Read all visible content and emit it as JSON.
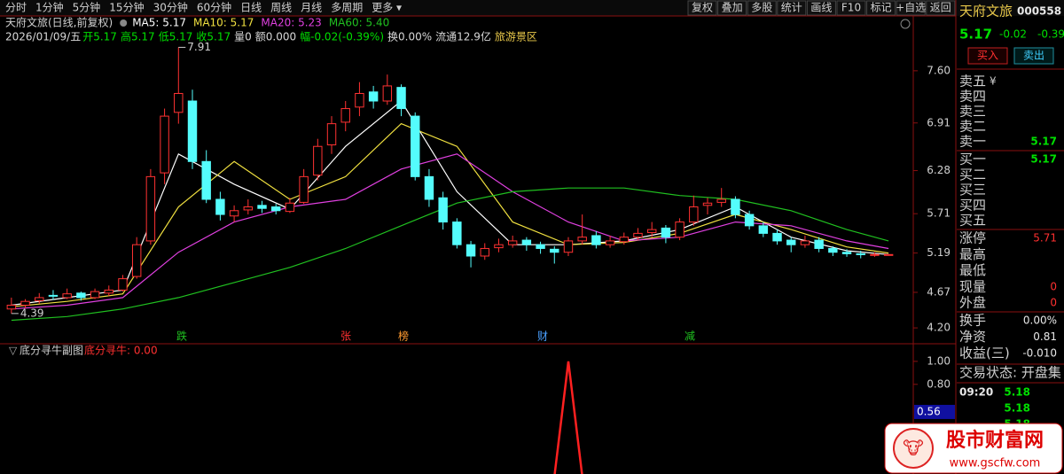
{
  "toolbar": {
    "periods": [
      "分时",
      "1分钟",
      "5分钟",
      "15分钟",
      "30分钟",
      "60分钟",
      "日线",
      "周线",
      "月线",
      "多周期",
      "更多 ▾"
    ],
    "tools": [
      "复权",
      "叠加",
      "多股",
      "统计",
      "画线",
      "F10",
      "标记",
      "+自选",
      "返回"
    ]
  },
  "info": {
    "title": "天府文旅(日线,前复权)",
    "details": [
      {
        "text": "2026/01/09/五",
        "color": "#d8d8d8"
      },
      {
        "text": "开5.17",
        "color": "#00e000"
      },
      {
        "text": "高5.17",
        "color": "#00e000"
      },
      {
        "text": "低5.17",
        "color": "#00e000"
      },
      {
        "text": "收5.17",
        "color": "#00e000"
      },
      {
        "text": "量0",
        "color": "#d8d8d8"
      },
      {
        "text": "额0.000",
        "color": "#d8d8d8"
      },
      {
        "text": "幅-0.02(-0.39%)",
        "color": "#00e000"
      },
      {
        "text": "换0.00%",
        "color": "#d8d8d8"
      },
      {
        "text": "流通12.9亿",
        "color": "#d8d8d8"
      },
      {
        "text": "旅游景区",
        "color": "#e8c84a"
      }
    ]
  },
  "events": [
    "跌",
    "张",
    "榜",
    "财",
    "减"
  ],
  "chart_data": [
    {
      "type": "candlestick",
      "ylim": [
        3.99,
        7.95
      ],
      "yticks": [
        {
          "value": 7.6,
          "label": "7.60"
        },
        {
          "value": 6.91,
          "label": "6.91"
        },
        {
          "value": 6.28,
          "label": "6.28"
        },
        {
          "value": 5.71,
          "label": "5.71"
        },
        {
          "value": 5.19,
          "label": "5.19"
        },
        {
          "value": 4.67,
          "label": "4.67"
        },
        {
          "value": 4.2,
          "label": "4.20"
        }
      ],
      "up_color": "#ff3232",
      "down_color": "#54fcfc",
      "open": [
        4.45,
        4.5,
        4.56,
        4.63,
        4.6,
        4.66,
        4.6,
        4.66,
        4.7,
        4.88,
        5.35,
        6.25,
        7.05,
        7.2,
        6.4,
        5.9,
        5.68,
        5.76,
        5.82,
        5.8,
        5.74,
        5.86,
        6.22,
        6.62,
        6.92,
        7.12,
        7.32,
        7.2,
        7.38,
        7,
        6.2,
        5.92,
        5.6,
        5.3,
        5.15,
        5.26,
        5.3,
        5.36,
        5.3,
        5.24,
        5.2,
        5.35,
        5.42,
        5.3,
        5.34,
        5.4,
        5.46,
        5.52,
        5.4,
        5.6,
        5.82,
        5.86,
        5.9,
        5.7,
        5.55,
        5.45,
        5.36,
        5.3,
        5.36,
        5.25,
        5.2,
        5.18,
        5.17,
        5.17
      ],
      "high": [
        4.6,
        4.58,
        4.66,
        4.7,
        4.72,
        4.68,
        4.72,
        4.76,
        4.9,
        5.4,
        6.3,
        7.1,
        7.91,
        7.35,
        6.55,
        6,
        5.82,
        5.9,
        5.88,
        5.84,
        5.92,
        6.3,
        6.7,
        7,
        7.2,
        7.45,
        7.4,
        7.55,
        7.42,
        7.05,
        6.3,
        6,
        5.65,
        5.35,
        5.32,
        5.38,
        5.42,
        5.4,
        5.34,
        5.28,
        5.4,
        5.7,
        5.48,
        5.42,
        5.46,
        5.52,
        5.6,
        5.56,
        5.65,
        5.95,
        5.92,
        6.05,
        5.94,
        5.75,
        5.6,
        5.5,
        5.4,
        5.42,
        5.4,
        5.28,
        5.24,
        5.22,
        5.2,
        5.17
      ],
      "low": [
        4.39,
        4.46,
        4.52,
        4.57,
        4.58,
        4.56,
        4.58,
        4.62,
        4.68,
        4.85,
        5.3,
        6.1,
        6.9,
        6.3,
        5.85,
        5.62,
        5.6,
        5.7,
        5.72,
        5.7,
        5.72,
        5.84,
        6.15,
        6.5,
        6.8,
        7,
        7.1,
        7.15,
        7,
        6.15,
        5.8,
        5.5,
        5.25,
        5,
        5.1,
        5.2,
        5.26,
        5.22,
        5.18,
        5.05,
        5.15,
        5.3,
        5.25,
        5.26,
        5.3,
        5.36,
        5.4,
        5.32,
        5.36,
        5.55,
        5.7,
        5.8,
        5.65,
        5.5,
        5.4,
        5.3,
        5.2,
        5.26,
        5.2,
        5.15,
        5.14,
        5.12,
        5.14,
        5.17
      ],
      "close": [
        4.5,
        4.55,
        4.6,
        4.62,
        4.65,
        4.6,
        4.68,
        4.7,
        4.85,
        5.3,
        6.2,
        7,
        7.3,
        6.4,
        5.9,
        5.7,
        5.75,
        5.8,
        5.78,
        5.75,
        5.85,
        6.2,
        6.6,
        6.9,
        7.1,
        7.3,
        7.2,
        7.4,
        7.1,
        6.2,
        5.9,
        5.6,
        5.3,
        5.15,
        5.25,
        5.3,
        5.35,
        5.3,
        5.25,
        5.2,
        5.35,
        5.4,
        5.3,
        5.35,
        5.4,
        5.45,
        5.5,
        5.4,
        5.6,
        5.8,
        5.85,
        5.9,
        5.7,
        5.55,
        5.45,
        5.35,
        5.3,
        5.35,
        5.25,
        5.2,
        5.18,
        5.17,
        5.17,
        5.17
      ],
      "ma_x": [
        0,
        4,
        8,
        12,
        16,
        20,
        24,
        28,
        32,
        36,
        40,
        44,
        48,
        52,
        56,
        60,
        63
      ],
      "series": [
        {
          "label": "MA5: 5.17",
          "color": "#ffffff",
          "values": [
            4.5,
            4.6,
            4.7,
            6.5,
            6.1,
            5.77,
            6.6,
            7.2,
            6,
            5.3,
            5.3,
            5.35,
            5.5,
            5.8,
            5.4,
            5.22,
            5.17
          ]
        },
        {
          "label": "MA10: 5.17",
          "color": "#f0e040",
          "values": [
            4.48,
            4.55,
            4.65,
            5.8,
            6.4,
            5.9,
            6.2,
            6.9,
            6.6,
            5.6,
            5.3,
            5.33,
            5.45,
            5.7,
            5.5,
            5.27,
            5.19
          ]
        },
        {
          "label": "MA20: 5.23",
          "color": "#e040e0",
          "values": [
            4.45,
            4.5,
            4.6,
            5.2,
            5.6,
            5.8,
            5.9,
            6.3,
            6.5,
            6,
            5.6,
            5.35,
            5.4,
            5.6,
            5.55,
            5.35,
            5.25
          ]
        },
        {
          "label": "MA60: 5.40",
          "color": "#20c020",
          "values": [
            4.3,
            4.35,
            4.45,
            4.6,
            4.8,
            5,
            5.25,
            5.55,
            5.85,
            6,
            6.05,
            6.05,
            5.95,
            5.9,
            5.75,
            5.5,
            5.35
          ]
        }
      ],
      "annotations": [
        {
          "value": 7.91,
          "label": "7.91"
        },
        {
          "value": 4.39,
          "label": "4.39"
        }
      ]
    },
    {
      "type": "line",
      "title": "底分寻牛副图",
      "label": "底分寻牛: 0.00",
      "color": "#ff2020",
      "ylim": [
        0.02,
        1.13
      ],
      "yticks": [
        {
          "value": 1,
          "label": "1.00"
        },
        {
          "value": 0.8,
          "label": "0.80"
        }
      ],
      "cursor": {
        "value": 0.56,
        "label": "0.56"
      },
      "values": [
        0,
        0,
        0,
        0,
        0,
        0,
        0,
        0,
        0,
        0,
        0,
        0,
        0,
        0,
        0,
        0,
        0,
        0,
        0,
        0,
        0,
        0,
        0,
        0,
        0,
        0,
        0,
        0,
        0,
        0,
        0,
        0,
        0,
        0,
        0,
        0,
        0,
        0,
        0,
        0,
        1,
        0,
        0,
        0,
        0,
        0,
        0,
        0,
        0,
        0,
        0,
        0,
        0,
        0,
        0,
        0,
        0,
        0,
        0,
        0,
        0,
        0,
        0,
        0
      ]
    }
  ],
  "panel": {
    "name": "天府文旅",
    "code": "000558",
    "price": "5.17",
    "change": "-0.02",
    "pct": "-0.39",
    "buy": "买入",
    "sell": "卖出",
    "asks": [
      {
        "label": "卖五",
        "note": "¥"
      },
      {
        "label": "卖四"
      },
      {
        "label": "卖三"
      },
      {
        "label": "卖二"
      },
      {
        "label": "卖一",
        "price": "5.17"
      }
    ],
    "bids": [
      {
        "label": "买一",
        "price": "5.17"
      },
      {
        "label": "买二"
      },
      {
        "label": "买三"
      },
      {
        "label": "买四"
      },
      {
        "label": "买五"
      }
    ],
    "stats": [
      {
        "label": "涨停",
        "value": "5.71"
      },
      {
        "label": "最高"
      },
      {
        "label": "最低"
      },
      {
        "label": "现量",
        "value": "0"
      },
      {
        "label": "外盘",
        "value": "0"
      }
    ],
    "stats2": [
      {
        "label": "换手",
        "value": "0.00%"
      },
      {
        "label": "净资",
        "value": "0.81"
      },
      {
        "label": "收益(三)",
        "value": "-0.010"
      }
    ],
    "status": "交易状态: 开盘集",
    "trades": [
      {
        "time": "09:20",
        "price": "5.18"
      },
      {
        "price": "5.18"
      },
      {
        "price": "5.18"
      }
    ]
  },
  "watermark": {
    "name": "股市财富网",
    "url": "www.gscfw.com"
  }
}
